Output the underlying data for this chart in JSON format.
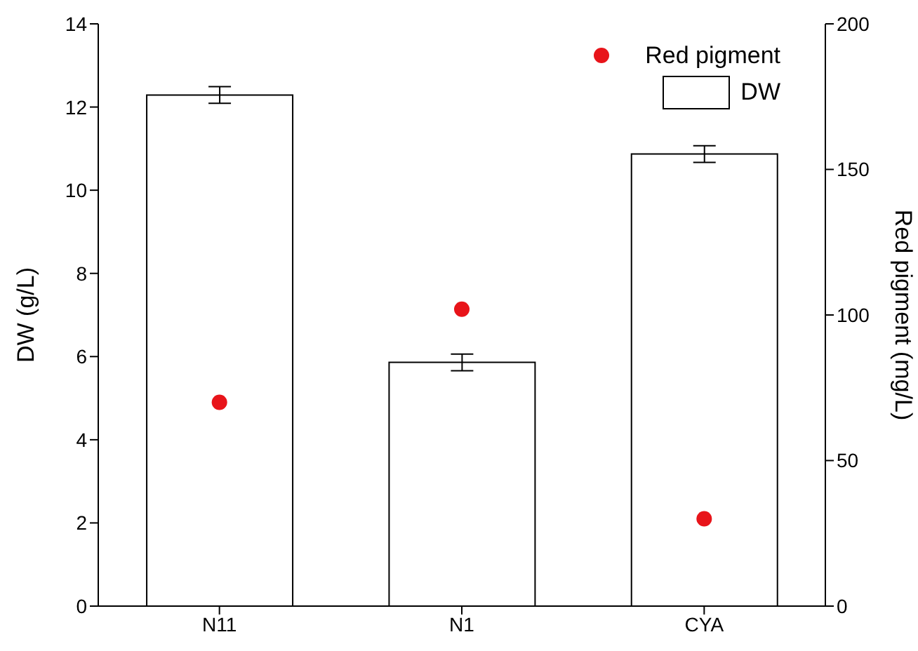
{
  "chart_data": {
    "type": "bar",
    "categories": [
      "N11",
      "N1",
      "CYA"
    ],
    "ylabel": "DW (g/L)",
    "y2label": "Red pigment (mg/L)",
    "ylim": [
      0,
      14
    ],
    "yticks": [
      0,
      2,
      4,
      6,
      8,
      10,
      12,
      14
    ],
    "y2lim": [
      0,
      200
    ],
    "y2ticks": [
      0,
      50,
      100,
      150,
      200
    ],
    "legend": "top right",
    "grid": false,
    "series": [
      {
        "name": "Red pigment",
        "type": "scatter",
        "axis": "y2",
        "color": "#e8141a",
        "marker": "circle",
        "values": [
          70,
          102,
          30
        ]
      },
      {
        "name": "DW",
        "color": "#ffffff",
        "values": [
          12.29,
          5.86,
          10.87
        ],
        "errors": [
          0.2,
          0.2,
          0.2
        ]
      }
    ]
  }
}
